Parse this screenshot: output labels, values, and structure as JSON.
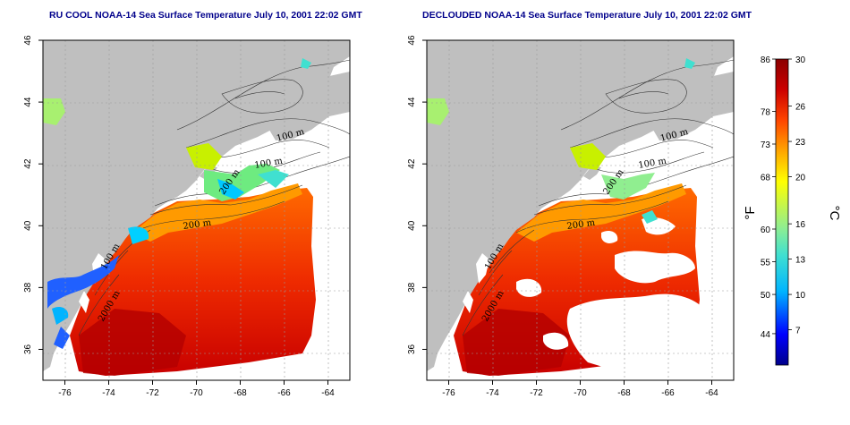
{
  "titles": {
    "left": "RU COOL NOAA-14 Sea Surface Temperature July 10, 2001 22:02 GMT",
    "right": "DECLOUDED NOAA-14 Sea Surface Temperature July 10, 2001 22:02 GMT"
  },
  "axes": {
    "lon_ticks": [
      -76,
      -74,
      -72,
      -70,
      -68,
      -66,
      -64
    ],
    "lat_ticks": [
      36,
      38,
      40,
      42,
      44,
      46
    ],
    "lon_range": [
      -77,
      -63
    ],
    "lat_range": [
      35,
      46
    ],
    "grid": "dotted"
  },
  "contour_labels": {
    "left": [
      "100 m",
      "100 m",
      "200 m",
      "200 m",
      "2000 m",
      "100 m"
    ],
    "right": [
      "100 m",
      "100 m",
      "200 m",
      "200 m",
      "2000 m",
      "100 m"
    ]
  },
  "colorbar": {
    "fahrenheit_unit": "°F",
    "celsius_unit": "°C",
    "fahrenheit_ticks": [
      "86",
      "78",
      "73",
      "68",
      "60",
      "55",
      "50",
      "44"
    ],
    "celsius_ticks": [
      "30",
      "26",
      "23",
      "20",
      "16",
      "13",
      "10",
      "7"
    ],
    "celsius_range": [
      4,
      30
    ],
    "colors": [
      "#00008b",
      "#0000ff",
      "#00b4ff",
      "#40e0d0",
      "#90ee90",
      "#ffff00",
      "#ffa500",
      "#ff4500",
      "#cc0000",
      "#8b0000"
    ]
  },
  "colors": {
    "land": "#bfbfbf",
    "cloud": "#ffffff",
    "title": "#00008b"
  }
}
